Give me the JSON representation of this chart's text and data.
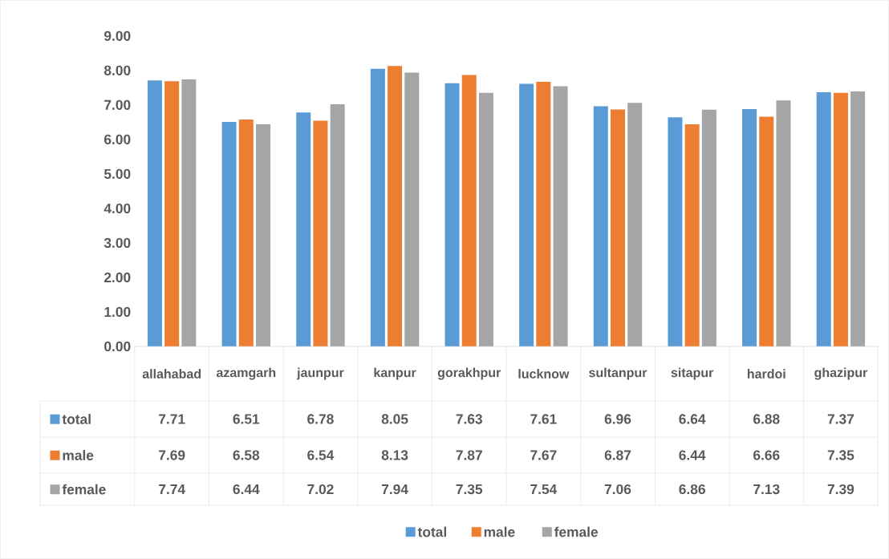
{
  "chart_data": {
    "type": "bar",
    "categories": [
      "allahabad",
      "azamgarh",
      "jaunpur",
      "kanpur",
      "gorakhpur",
      "lucknow",
      "sultanpur",
      "sitapur",
      "hardoi",
      "ghazipur"
    ],
    "series": [
      {
        "name": "total",
        "color": "#5b9bd5",
        "values": [
          7.71,
          6.51,
          6.78,
          8.05,
          7.63,
          7.61,
          6.96,
          6.64,
          6.88,
          7.37
        ]
      },
      {
        "name": "male",
        "color": "#ed7d31",
        "values": [
          7.69,
          6.58,
          6.54,
          8.13,
          7.87,
          7.67,
          6.87,
          6.44,
          6.66,
          7.35
        ]
      },
      {
        "name": "female",
        "color": "#a5a5a5",
        "values": [
          7.74,
          6.44,
          7.02,
          7.94,
          7.35,
          7.54,
          7.06,
          6.86,
          7.13,
          7.39
        ]
      }
    ],
    "ylim": [
      0,
      9
    ],
    "yticks": [
      {
        "value": 0,
        "label": "0.00"
      },
      {
        "value": 1,
        "label": "1.00"
      },
      {
        "value": 2,
        "label": "2.00"
      },
      {
        "value": 3,
        "label": "3.00"
      },
      {
        "value": 4,
        "label": "4.00"
      },
      {
        "value": 5,
        "label": "5.00"
      },
      {
        "value": 6,
        "label": "6.00"
      },
      {
        "value": 7,
        "label": "7.00"
      },
      {
        "value": 8,
        "label": "8.00"
      },
      {
        "value": 9,
        "label": "9.00"
      }
    ],
    "data_labels": true,
    "legend": "bottom"
  }
}
